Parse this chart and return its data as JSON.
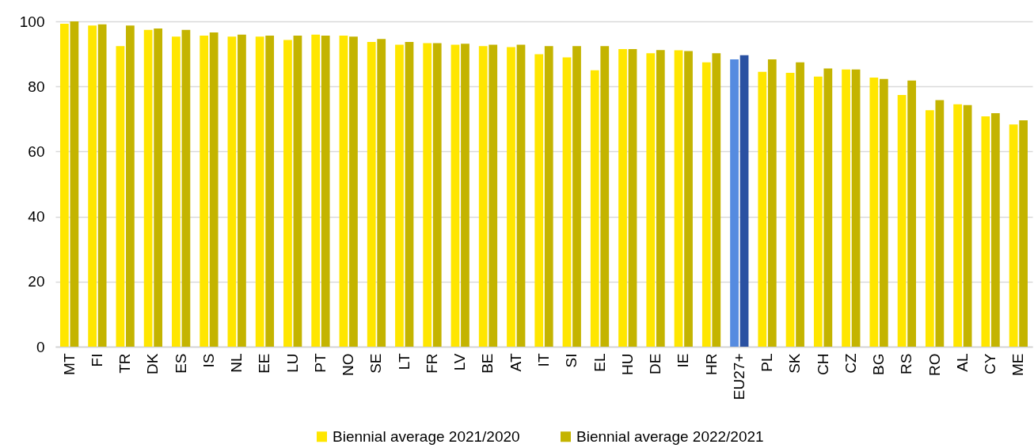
{
  "chart_data": {
    "type": "bar",
    "categories": [
      "MT",
      "FI",
      "TR",
      "DK",
      "ES",
      "IS",
      "NL",
      "EE",
      "LU",
      "PT",
      "NO",
      "SE",
      "LT",
      "FR",
      "LV",
      "BE",
      "AT",
      "IT",
      "SI",
      "EL",
      "HU",
      "DE",
      "IE",
      "HR",
      "EU27+",
      "PL",
      "SK",
      "CH",
      "CZ",
      "BG",
      "RS",
      "RO",
      "AL",
      "CY",
      "ME"
    ],
    "series": [
      {
        "name": "Biennial average 2021/2020",
        "color": "#ffe600",
        "colors": [
          "#ffe600",
          "#ffe600",
          "#ffe600",
          "#ffe600",
          "#ffe600",
          "#ffe600",
          "#ffe600",
          "#ffe600",
          "#ffe600",
          "#ffe600",
          "#ffe600",
          "#ffe600",
          "#ffe600",
          "#ffe600",
          "#ffe600",
          "#ffe600",
          "#ffe600",
          "#ffe600",
          "#ffe600",
          "#ffe600",
          "#ffe600",
          "#ffe600",
          "#ffe600",
          "#ffe600",
          "#558be0",
          "#ffe600",
          "#ffe600",
          "#ffe600",
          "#ffe600",
          "#ffe600",
          "#ffe600",
          "#ffe600",
          "#ffe600",
          "#ffe600",
          "#ffe600"
        ],
        "values": [
          99.3,
          98.7,
          92.4,
          97.4,
          95.3,
          95.6,
          95.3,
          95.3,
          94.3,
          95.9,
          95.6,
          93.7,
          92.8,
          93.3,
          92.8,
          92.4,
          92.1,
          89.9,
          88.9,
          85.0,
          91.5,
          90.2,
          91.1,
          87.4,
          88.3,
          84.5,
          84.2,
          83.0,
          85.2,
          82.7,
          77.4,
          72.7,
          74.5,
          70.8,
          68.3
        ]
      },
      {
        "name": "Biennial average 2022/2021",
        "color": "#c4b400",
        "colors": [
          "#c4b400",
          "#c4b400",
          "#c4b400",
          "#c4b400",
          "#c4b400",
          "#c4b400",
          "#c4b400",
          "#c4b400",
          "#c4b400",
          "#c4b400",
          "#c4b400",
          "#c4b400",
          "#c4b400",
          "#c4b400",
          "#c4b400",
          "#c4b400",
          "#c4b400",
          "#c4b400",
          "#c4b400",
          "#c4b400",
          "#c4b400",
          "#c4b400",
          "#c4b400",
          "#c4b400",
          "#2a51a2",
          "#c4b400",
          "#c4b400",
          "#c4b400",
          "#c4b400",
          "#c4b400",
          "#c4b400",
          "#c4b400",
          "#c4b400",
          "#c4b400",
          "#c4b400"
        ],
        "values": [
          100.0,
          99.1,
          98.7,
          97.8,
          97.4,
          96.6,
          95.9,
          95.6,
          95.6,
          95.6,
          95.3,
          94.6,
          93.7,
          93.3,
          93.1,
          92.8,
          92.8,
          92.4,
          92.4,
          92.4,
          91.5,
          91.2,
          90.9,
          90.2,
          89.6,
          88.3,
          87.4,
          85.5,
          85.2,
          82.3,
          81.8,
          75.8,
          74.3,
          71.8,
          69.6
        ]
      }
    ],
    "ylim": [
      0,
      100
    ],
    "yticks": [
      0,
      20,
      40,
      60,
      80,
      100
    ],
    "grid": "y",
    "legend": "bottom"
  }
}
